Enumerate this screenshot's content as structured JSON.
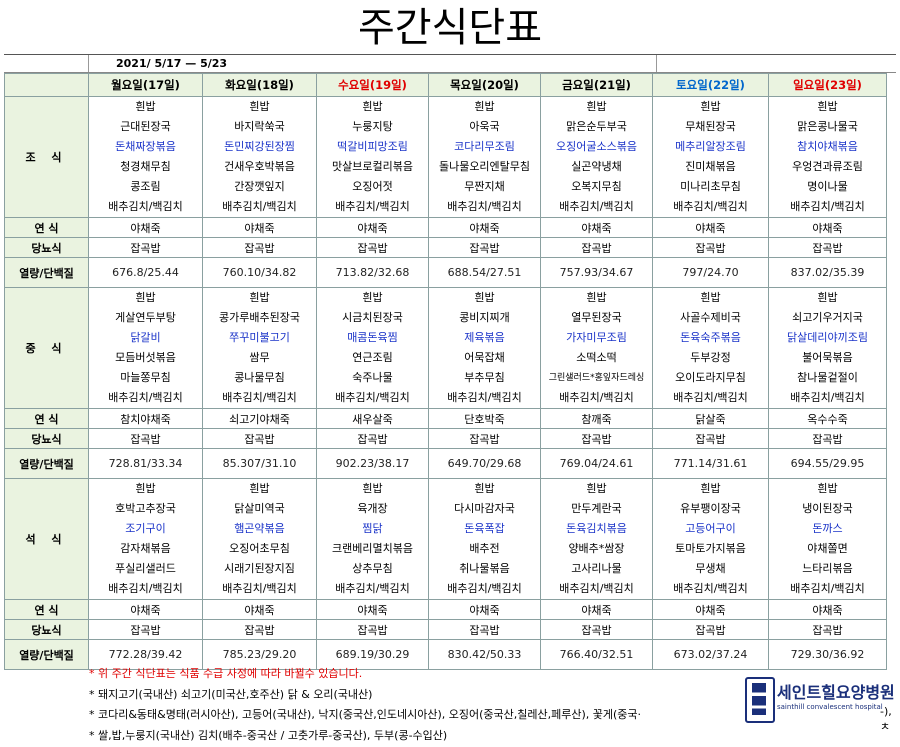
{
  "title": "주간식단표",
  "date_range": "2021/ 5/17  —  5/23",
  "days": [
    {
      "label": "월요일(17일)",
      "color": "normal"
    },
    {
      "label": "화요일(18일)",
      "color": "normal"
    },
    {
      "label": "수요일(19일)",
      "color": "red"
    },
    {
      "label": "목요일(20일)",
      "color": "normal"
    },
    {
      "label": "금요일(21일)",
      "color": "normal"
    },
    {
      "label": "토요일(22일)",
      "color": "sat"
    },
    {
      "label": "일요일(23일)",
      "color": "red"
    }
  ],
  "labels": {
    "breakfast": "조 식",
    "lunch": "중 식",
    "dinner": "석 식",
    "soft": "연 식",
    "diabetic": "당뇨식",
    "nutrition": "열량/단백질"
  },
  "breakfast": [
    [
      {
        "t": "흰밥"
      },
      {
        "t": "근대된장국"
      },
      {
        "t": "돈채짜장볶음",
        "c": "blue"
      },
      {
        "t": "청경채무침"
      },
      {
        "t": "콩조림"
      },
      {
        "t": "배추김치/백김치"
      }
    ],
    [
      {
        "t": "흰밥"
      },
      {
        "t": "바지락쑥국"
      },
      {
        "t": "돈민찌강된장찜",
        "c": "blue"
      },
      {
        "t": "건새우호박볶음"
      },
      {
        "t": "간장깻잎지"
      },
      {
        "t": "배추김치/백김치"
      }
    ],
    [
      {
        "t": "흰밥"
      },
      {
        "t": "누룽지탕"
      },
      {
        "t": "떡갈비피망조림",
        "c": "blue"
      },
      {
        "t": "맛살브로컬리볶음"
      },
      {
        "t": "오징어젓"
      },
      {
        "t": "배추김치/백김치"
      }
    ],
    [
      {
        "t": "흰밥"
      },
      {
        "t": "아욱국"
      },
      {
        "t": "코다리무조림",
        "c": "blue"
      },
      {
        "t": "돌나물오리엔탈무침"
      },
      {
        "t": "무짠지채"
      },
      {
        "t": "배추김치/백김치"
      }
    ],
    [
      {
        "t": "흰밥"
      },
      {
        "t": "맑은순두부국"
      },
      {
        "t": "오징어굴소스볶음",
        "c": "blue"
      },
      {
        "t": "실곤약냉채"
      },
      {
        "t": "오복지무침"
      },
      {
        "t": "배추김치/백김치"
      }
    ],
    [
      {
        "t": "흰밥"
      },
      {
        "t": "무채된장국"
      },
      {
        "t": "메추리알장조림",
        "c": "blue"
      },
      {
        "t": "진미채볶음"
      },
      {
        "t": "미나리초무침"
      },
      {
        "t": "배추김치/백김치"
      }
    ],
    [
      {
        "t": "흰밥"
      },
      {
        "t": "맑은콩나물국"
      },
      {
        "t": "참치야채볶음",
        "c": "blue"
      },
      {
        "t": "우엉견과류조림"
      },
      {
        "t": "명이나물"
      },
      {
        "t": "배추김치/백김치"
      }
    ]
  ],
  "breakfast_soft": [
    "야채죽",
    "야채죽",
    "야채죽",
    "야채죽",
    "야채죽",
    "야채죽",
    "야채죽"
  ],
  "breakfast_diabetic": [
    "잡곡밥",
    "잡곡밥",
    "잡곡밥",
    "잡곡밥",
    "잡곡밥",
    "잡곡밥",
    "잡곡밥"
  ],
  "breakfast_nutrition": [
    "676.8/25.44",
    "760.10/34.82",
    "713.82/32.68",
    "688.54/27.51",
    "757.93/34.67",
    "797/24.70",
    "837.02/35.39"
  ],
  "lunch": [
    [
      {
        "t": "흰밥"
      },
      {
        "t": "게살연두부탕"
      },
      {
        "t": "닭갈비",
        "c": "blue"
      },
      {
        "t": "모듬버섯볶음"
      },
      {
        "t": "마늘쫑무침"
      },
      {
        "t": "배추김치/백김치"
      }
    ],
    [
      {
        "t": "흰밥"
      },
      {
        "t": "콩가루배추된장국"
      },
      {
        "t": "쭈꾸미불고기",
        "c": "blue"
      },
      {
        "t": "쌈무"
      },
      {
        "t": "콩나물무침"
      },
      {
        "t": "배추김치/백김치"
      }
    ],
    [
      {
        "t": "흰밥"
      },
      {
        "t": "시금치된장국"
      },
      {
        "t": "매콤돈육찜",
        "c": "blue"
      },
      {
        "t": "연근조림"
      },
      {
        "t": "숙주나물"
      },
      {
        "t": "배추김치/백김치"
      }
    ],
    [
      {
        "t": "흰밥"
      },
      {
        "t": "콩비지찌개"
      },
      {
        "t": "제육볶음",
        "c": "blue"
      },
      {
        "t": "어묵잡채"
      },
      {
        "t": "부추무침"
      },
      {
        "t": "배추김치/백김치"
      }
    ],
    [
      {
        "t": "흰밥"
      },
      {
        "t": "열무된장국"
      },
      {
        "t": "가자미무조림",
        "c": "blue"
      },
      {
        "t": "소떡소떡"
      },
      {
        "t": "그린샐러드*홍잎자드레싱",
        "c": "small"
      },
      {
        "t": "배추김치/백김치"
      }
    ],
    [
      {
        "t": "흰밥"
      },
      {
        "t": "사골수제비국"
      },
      {
        "t": "돈육숙주볶음",
        "c": "blue"
      },
      {
        "t": "두부강정"
      },
      {
        "t": "오이도라지무침"
      },
      {
        "t": "배추김치/백김치"
      }
    ],
    [
      {
        "t": "흰밥"
      },
      {
        "t": "쇠고기우거지국"
      },
      {
        "t": "닭살데리야끼조림",
        "c": "blue"
      },
      {
        "t": "불어묵볶음"
      },
      {
        "t": "참나물겉절이"
      },
      {
        "t": "배추김치/백김치"
      }
    ]
  ],
  "lunch_soft": [
    "참치야채죽",
    "쇠고기야채죽",
    "새우살죽",
    "단호박죽",
    "참깨죽",
    "닭살죽",
    "옥수수죽"
  ],
  "lunch_diabetic": [
    "잡곡밥",
    "잡곡밥",
    "잡곡밥",
    "잡곡밥",
    "잡곡밥",
    "잡곡밥",
    "잡곡밥"
  ],
  "lunch_nutrition": [
    "728.81/33.34",
    "85.307/31.10",
    "902.23/38.17",
    "649.70/29.68",
    "769.04/24.61",
    "771.14/31.61",
    "694.55/29.95"
  ],
  "dinner": [
    [
      {
        "t": "흰밥"
      },
      {
        "t": "호박고추장국"
      },
      {
        "t": "조기구이",
        "c": "blue"
      },
      {
        "t": "감자채볶음"
      },
      {
        "t": "푸실리샐러드"
      },
      {
        "t": "배추김치/백김치"
      }
    ],
    [
      {
        "t": "흰밥"
      },
      {
        "t": "닭살미역국"
      },
      {
        "t": "햄곤약볶음",
        "c": "blue"
      },
      {
        "t": "오징어초무침"
      },
      {
        "t": "시래기된장지짐"
      },
      {
        "t": "배추김치/백김치"
      }
    ],
    [
      {
        "t": "흰밥"
      },
      {
        "t": "육개장"
      },
      {
        "t": "찜닭",
        "c": "blue"
      },
      {
        "t": "크랜베리멸치볶음"
      },
      {
        "t": "상추무침"
      },
      {
        "t": "배추김치/백김치"
      }
    ],
    [
      {
        "t": "흰밥"
      },
      {
        "t": "다시마감자국"
      },
      {
        "t": "돈육폭잡",
        "c": "blue"
      },
      {
        "t": "배추전"
      },
      {
        "t": "취나물볶음"
      },
      {
        "t": "배추김치/백김치"
      }
    ],
    [
      {
        "t": "흰밥"
      },
      {
        "t": "만두계란국"
      },
      {
        "t": "돈육김치볶음",
        "c": "blue"
      },
      {
        "t": "양배추*쌈장"
      },
      {
        "t": "고사리나물"
      },
      {
        "t": "배추김치/백김치"
      }
    ],
    [
      {
        "t": "흰밥"
      },
      {
        "t": "유부팽이장국"
      },
      {
        "t": "고등어구이",
        "c": "blue"
      },
      {
        "t": "토마토가지볶음"
      },
      {
        "t": "무생채"
      },
      {
        "t": "배추김치/백김치"
      }
    ],
    [
      {
        "t": "흰밥"
      },
      {
        "t": "냉이된장국"
      },
      {
        "t": "돈까스",
        "c": "blue"
      },
      {
        "t": "야채쫄면"
      },
      {
        "t": "느타리볶음"
      },
      {
        "t": "배추김치/백김치"
      }
    ]
  ],
  "dinner_soft": [
    "야채죽",
    "야채죽",
    "야채죽",
    "야채죽",
    "야채죽",
    "야채죽",
    "야채죽"
  ],
  "dinner_diabetic": [
    "잡곡밥",
    "잡곡밥",
    "잡곡밥",
    "잡곡밥",
    "잡곡밥",
    "잡곡밥",
    "잡곡밥"
  ],
  "dinner_nutrition": [
    "772.28/39.42",
    "785.23/29.20",
    "689.19/30.29",
    "830.42/50.33",
    "766.40/32.51",
    "673.02/37.24",
    "729.30/36.92"
  ],
  "notes": [
    "* 위 주간 식단표는 식품 수급 사정에 따라 바뀔수 있습니다.",
    "* 돼지고기(국내산) 쇠고기(미국산,호주산) 닭 & 오리(국내산)",
    "* 코다리&동태&명태(러시아산), 고등어(국내산), 낙지(중국산,인도네시아산), 오징어(중국산,칠레산,페루산), 꽃게(중국·",
    "* 쌀,밥,누룽지(국내산) 김치(배추-중국산 / 고춧가루-중국산), 두부(콩-수입산)"
  ],
  "logo": {
    "name": "세인트힐요양병원",
    "sub": "sainthill convalescent hospital",
    "trailing": "-), ㅊ"
  }
}
